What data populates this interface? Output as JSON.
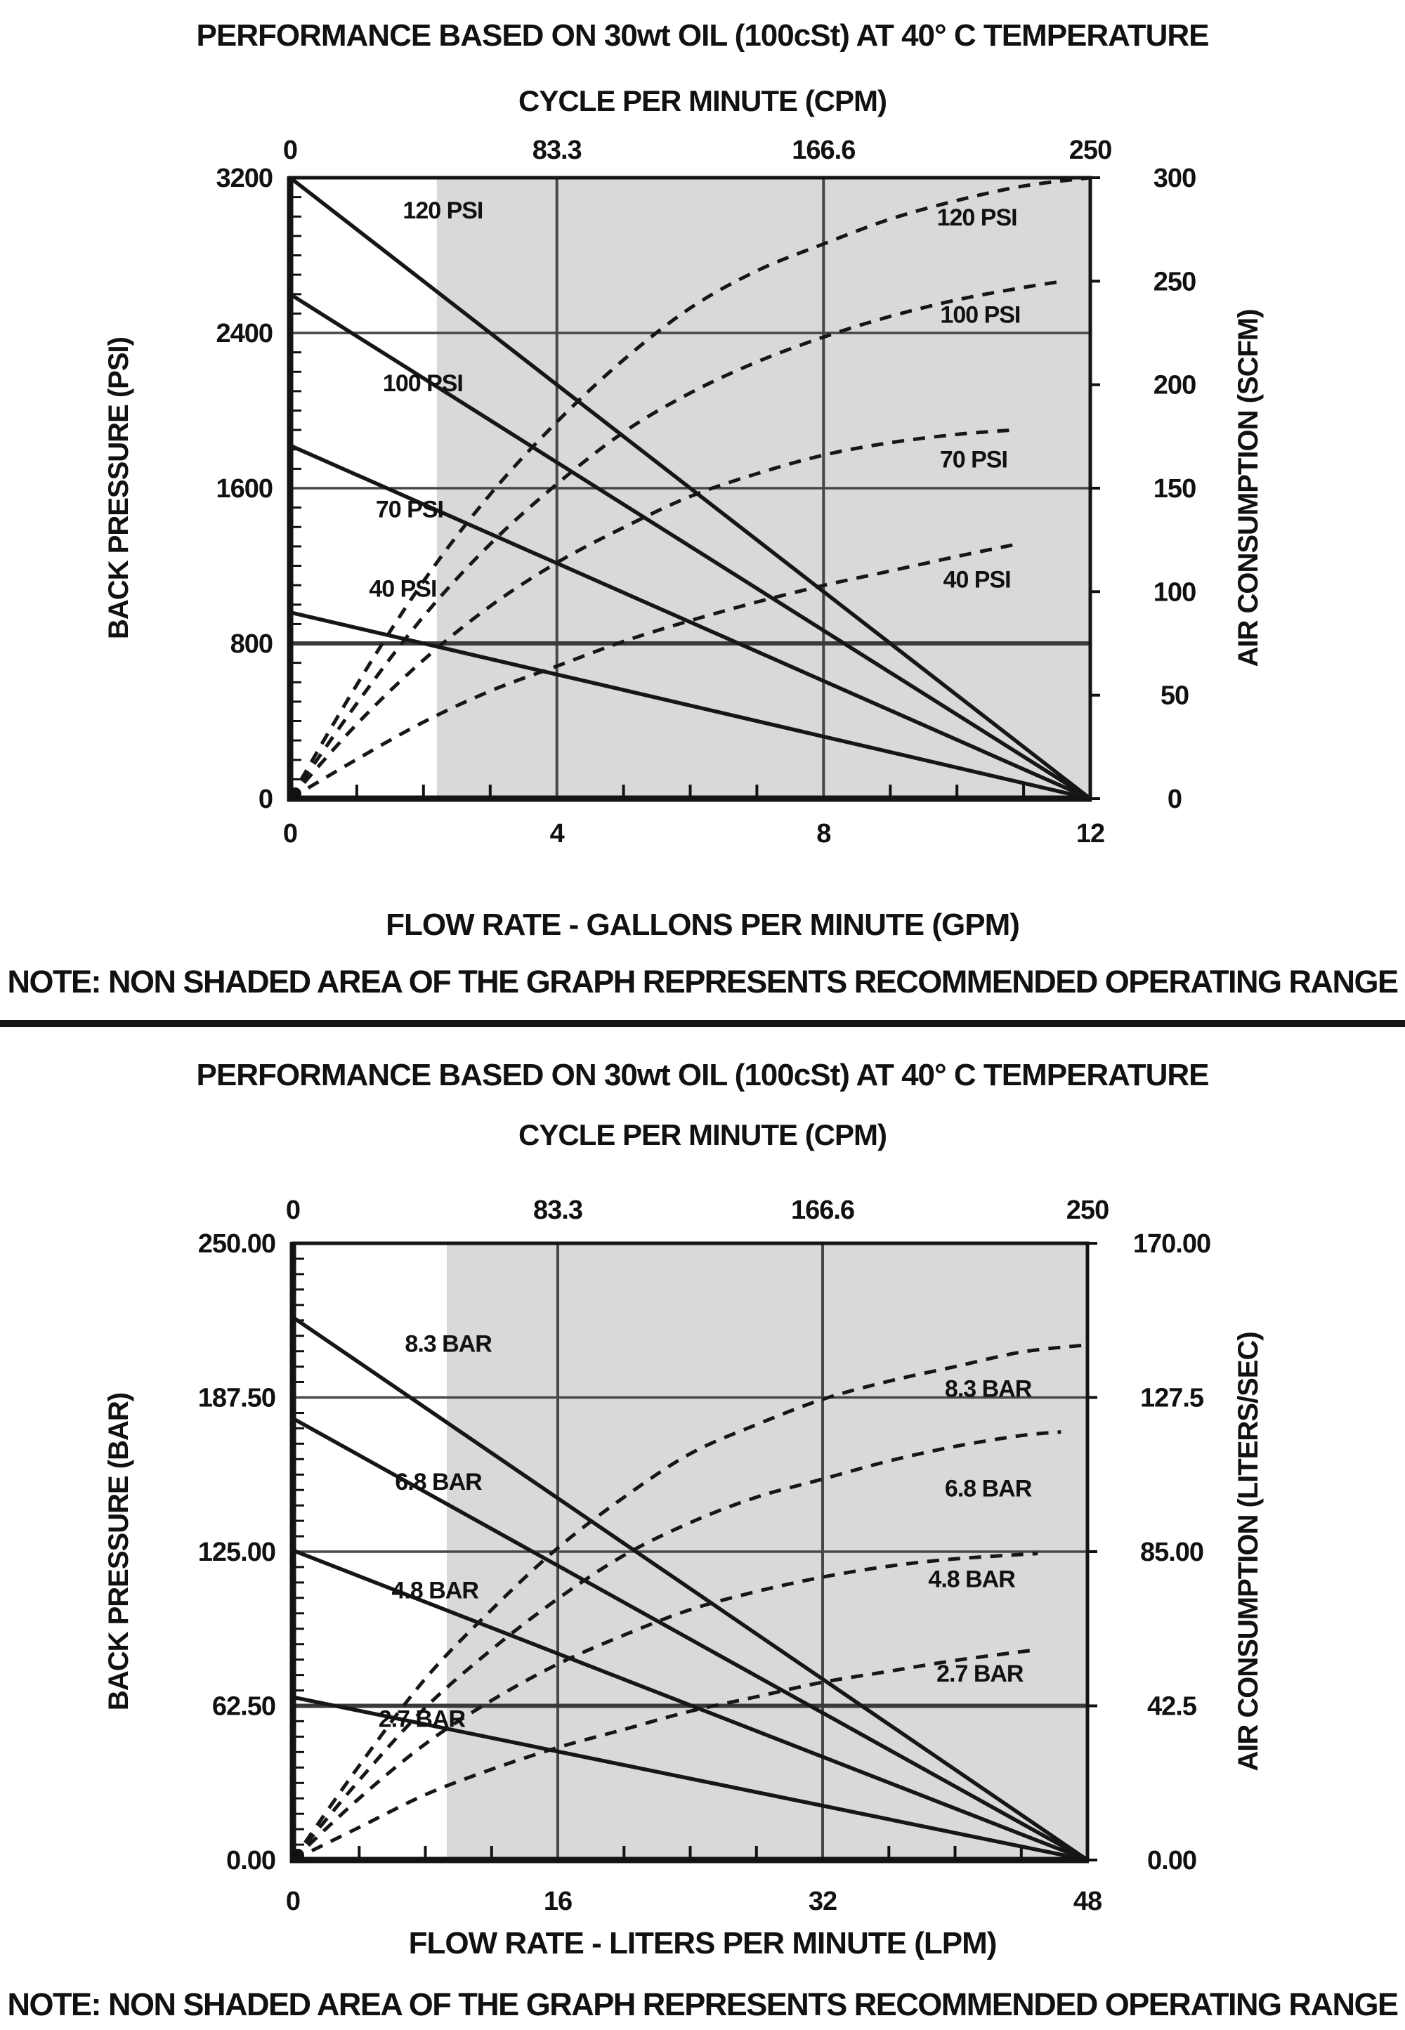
{
  "page": {
    "note": "NOTE: NON SHADED AREA OF THE GRAPH REPRESENTS RECOMMENDED OPERATING RANGE"
  },
  "chart_data": [
    {
      "type": "line",
      "name": "psi-gpm-performance",
      "title": "PERFORMANCE BASED ON 30wt OIL (100cSt) AT 40° C TEMPERATURE",
      "subtitle": "CYCLE PER MINUTE (CPM)",
      "note": "NOTE: NON SHADED AREA OF THE GRAPH REPRESENTS RECOMMENDED OPERATING RANGE",
      "x_axis": {
        "label": "FLOW RATE - GALLONS PER MINUTE (GPM)",
        "min": 0,
        "max": 12,
        "minor_step": 1,
        "gridlines": [
          4,
          8
        ],
        "ticks": [
          {
            "v": 0,
            "label": "0"
          },
          {
            "v": 4,
            "label": "4"
          },
          {
            "v": 8,
            "label": "8"
          },
          {
            "v": 12,
            "label": "12"
          }
        ]
      },
      "top_axis": {
        "ticks": [
          {
            "v": 0,
            "label": "0"
          },
          {
            "v": 4,
            "label": "83.3"
          },
          {
            "v": 8,
            "label": "166.6"
          },
          {
            "v": 12,
            "label": "250"
          }
        ]
      },
      "left_axis": {
        "label": "BACK PRESSURE (PSI)",
        "min": 0,
        "max": 3200,
        "minor_step": 100,
        "gridlines": [
          {
            "v": 2400,
            "emph": false
          },
          {
            "v": 1600,
            "emph": false
          },
          {
            "v": 800,
            "emph": true
          }
        ],
        "ticks": [
          {
            "v": 3200,
            "label": "3200"
          },
          {
            "v": 2400,
            "label": "2400"
          },
          {
            "v": 1600,
            "label": "1600"
          },
          {
            "v": 800,
            "label": "800"
          },
          {
            "v": 0,
            "label": "0"
          }
        ]
      },
      "right_axis": {
        "label": "AIR CONSUMPTION (SCFM)",
        "min": 0,
        "max": 300,
        "ticks": [
          {
            "v": 300,
            "label": "300"
          },
          {
            "v": 250,
            "label": "250"
          },
          {
            "v": 200,
            "label": "200"
          },
          {
            "v": 150,
            "label": "150"
          },
          {
            "v": 100,
            "label": "100"
          },
          {
            "v": 50,
            "label": "50"
          },
          {
            "v": 0,
            "label": "0"
          }
        ]
      },
      "shade_from_x": 2.2,
      "series_solid": [
        {
          "label": "120 PSI",
          "points": [
            [
              0,
              3200
            ],
            [
              12,
              0
            ]
          ],
          "label_pos": [
            1.5,
            2990
          ]
        },
        {
          "label": "100 PSI",
          "points": [
            [
              0,
              2600
            ],
            [
              12,
              0
            ]
          ],
          "label_pos": [
            1.2,
            2100
          ]
        },
        {
          "label": "70 PSI",
          "points": [
            [
              0,
              1820
            ],
            [
              12,
              0
            ]
          ],
          "label_pos": [
            1.0,
            1450
          ]
        },
        {
          "label": "40 PSI",
          "points": [
            [
              0,
              960
            ],
            [
              12,
              0
            ]
          ],
          "label_pos": [
            0.9,
            1040
          ]
        }
      ],
      "series_dashed": [
        {
          "label": "120 PSI",
          "label_pos": [
            10.3,
            281
          ],
          "points": [
            [
              0,
              0
            ],
            [
              1,
              55
            ],
            [
              2,
              105
            ],
            [
              3,
              147
            ],
            [
              4,
              182
            ],
            [
              5,
              212
            ],
            [
              6,
              237
            ],
            [
              7,
              255
            ],
            [
              8,
              268
            ],
            [
              9,
              280
            ],
            [
              10,
              289
            ],
            [
              11,
              296
            ],
            [
              12,
              300
            ]
          ]
        },
        {
          "label": "100 PSI",
          "label_pos": [
            10.35,
            234
          ],
          "points": [
            [
              0,
              0
            ],
            [
              1,
              46
            ],
            [
              2,
              88
            ],
            [
              3,
              123
            ],
            [
              4,
              152
            ],
            [
              5,
              177
            ],
            [
              6,
              196
            ],
            [
              7,
              211
            ],
            [
              8,
              223
            ],
            [
              9,
              233
            ],
            [
              10,
              241
            ],
            [
              11,
              247
            ],
            [
              11.6,
              250
            ]
          ]
        },
        {
          "label": "70 PSI",
          "label_pos": [
            10.25,
            164
          ],
          "points": [
            [
              0,
              0
            ],
            [
              1,
              36
            ],
            [
              2,
              67
            ],
            [
              3,
              93
            ],
            [
              4,
              114
            ],
            [
              5,
              131
            ],
            [
              6,
              146
            ],
            [
              7,
              157
            ],
            [
              8,
              166
            ],
            [
              9,
              172
            ],
            [
              10,
              176
            ],
            [
              10.8,
              178
            ]
          ]
        },
        {
          "label": "40 PSI",
          "label_pos": [
            10.3,
            106
          ],
          "points": [
            [
              0,
              0
            ],
            [
              1,
              19
            ],
            [
              2,
              37
            ],
            [
              3,
              52
            ],
            [
              4,
              64
            ],
            [
              5,
              76
            ],
            [
              6,
              86
            ],
            [
              7,
              95
            ],
            [
              8,
              103
            ],
            [
              9,
              110
            ],
            [
              10,
              117
            ],
            [
              10.9,
              123
            ]
          ]
        }
      ]
    },
    {
      "type": "line",
      "name": "bar-lpm-performance",
      "title": "PERFORMANCE BASED ON 30wt OIL (100cSt) AT 40° C TEMPERATURE",
      "subtitle": "CYCLE PER MINUTE (CPM)",
      "note": "NOTE: NON SHADED AREA OF THE GRAPH REPRESENTS RECOMMENDED OPERATING RANGE",
      "x_axis": {
        "label": "FLOW RATE - LITERS PER MINUTE (LPM)",
        "min": 0,
        "max": 48,
        "minor_step": 4,
        "gridlines": [
          16,
          32
        ],
        "ticks": [
          {
            "v": 0,
            "label": "0"
          },
          {
            "v": 16,
            "label": "16"
          },
          {
            "v": 32,
            "label": "32"
          },
          {
            "v": 48,
            "label": "48"
          }
        ]
      },
      "top_axis": {
        "ticks": [
          {
            "v": 0,
            "label": "0"
          },
          {
            "v": 16,
            "label": "83.3"
          },
          {
            "v": 32,
            "label": "166.6"
          },
          {
            "v": 48,
            "label": "250"
          }
        ]
      },
      "left_axis": {
        "label": "BACK PRESSURE (BAR)",
        "min": 0,
        "max": 250,
        "minor_step": 6.25,
        "gridlines": [
          {
            "v": 187.5,
            "emph": false
          },
          {
            "v": 125,
            "emph": false
          },
          {
            "v": 62.5,
            "emph": true
          }
        ],
        "ticks": [
          {
            "v": 250,
            "label": "250.00"
          },
          {
            "v": 187.5,
            "label": "187.50"
          },
          {
            "v": 125,
            "label": "125.00"
          },
          {
            "v": 62.5,
            "label": "62.50"
          },
          {
            "v": 0,
            "label": "0.00"
          }
        ]
      },
      "right_axis": {
        "label": "AIR CONSUMPTION (LITERS/SEC)",
        "min": 0,
        "max": 170,
        "ticks": [
          {
            "v": 170,
            "label": "170.00"
          },
          {
            "v": 127.5,
            "label": "127.5"
          },
          {
            "v": 85,
            "label": "85.00"
          },
          {
            "v": 42.5,
            "label": "42.5"
          },
          {
            "v": 0,
            "label": "0.00"
          }
        ]
      },
      "shade_from_x": 9.3,
      "series_solid": [
        {
          "label": "8.3 BAR",
          "points": [
            [
              0,
              220
            ],
            [
              48,
              0
            ]
          ],
          "label_pos": [
            6.2,
            206
          ]
        },
        {
          "label": "6.8 BAR",
          "points": [
            [
              0,
              179
            ],
            [
              48,
              0
            ]
          ],
          "label_pos": [
            5.6,
            150
          ]
        },
        {
          "label": "4.8 BAR",
          "points": [
            [
              0,
              125.5
            ],
            [
              48,
              0
            ]
          ],
          "label_pos": [
            5.4,
            106
          ]
        },
        {
          "label": "2.7 BAR",
          "points": [
            [
              0,
              66
            ],
            [
              48,
              0
            ]
          ],
          "label_pos": [
            4.6,
            54
          ]
        }
      ],
      "series_dashed": [
        {
          "label": "8.3 BAR",
          "label_pos": [
            42,
            130
          ],
          "points": [
            [
              0,
              0
            ],
            [
              4,
              26
            ],
            [
              8,
              50
            ],
            [
              12,
              69
            ],
            [
              16,
              86
            ],
            [
              20,
              100
            ],
            [
              24,
              112
            ],
            [
              28,
              120
            ],
            [
              32,
              127
            ],
            [
              36,
              132
            ],
            [
              40,
              136
            ],
            [
              44,
              140
            ],
            [
              48,
              142
            ]
          ]
        },
        {
          "label": "6.8 BAR",
          "label_pos": [
            42,
            102.5
          ],
          "points": [
            [
              0,
              0
            ],
            [
              4,
              22
            ],
            [
              8,
              42
            ],
            [
              12,
              58
            ],
            [
              16,
              72
            ],
            [
              20,
              84
            ],
            [
              24,
              93
            ],
            [
              28,
              100
            ],
            [
              32,
              105
            ],
            [
              36,
              110
            ],
            [
              40,
              114
            ],
            [
              44,
              117
            ],
            [
              46.4,
              118
            ]
          ]
        },
        {
          "label": "4.8 BAR",
          "label_pos": [
            41,
            77.5
          ],
          "points": [
            [
              0,
              0
            ],
            [
              4,
              17
            ],
            [
              8,
              32
            ],
            [
              12,
              44
            ],
            [
              16,
              54
            ],
            [
              20,
              62
            ],
            [
              24,
              69
            ],
            [
              28,
              74
            ],
            [
              32,
              78
            ],
            [
              36,
              81
            ],
            [
              40,
              83
            ],
            [
              45,
              84.5
            ]
          ]
        },
        {
          "label": "2.7 BAR",
          "label_pos": [
            41.5,
            51.5
          ],
          "points": [
            [
              0,
              0
            ],
            [
              4,
              9
            ],
            [
              8,
              18
            ],
            [
              12,
              25
            ],
            [
              16,
              31
            ],
            [
              20,
              36
            ],
            [
              24,
              41
            ],
            [
              28,
              45
            ],
            [
              32,
              49
            ],
            [
              36,
              52
            ],
            [
              40,
              55
            ],
            [
              45,
              58
            ]
          ]
        }
      ]
    }
  ]
}
